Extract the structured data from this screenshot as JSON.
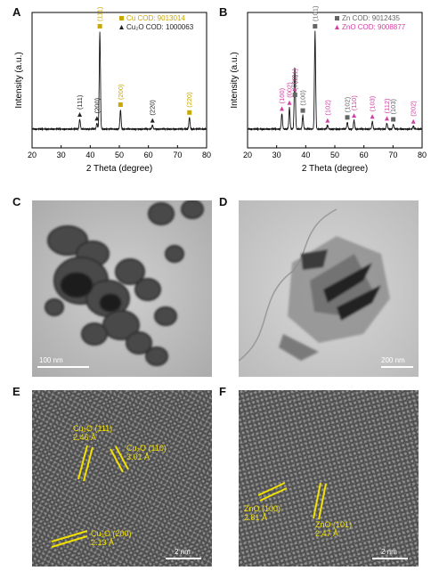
{
  "panels": {
    "a": {
      "letter": "A"
    },
    "b": {
      "letter": "B"
    },
    "c": {
      "letter": "C"
    },
    "d": {
      "letter": "D"
    },
    "e": {
      "letter": "E"
    },
    "f": {
      "letter": "F"
    }
  },
  "colors": {
    "cu": "#c9a800",
    "zno": "#d23fa2",
    "black": "#222222",
    "gray": "#666666",
    "hr_label": "#f2e000"
  },
  "chart_data": [
    {
      "type": "line",
      "xlabel": "2 Theta (degree)",
      "ylabel": "Intensity (a.u.)",
      "xlim": [
        20,
        80
      ],
      "xticks": [
        20,
        30,
        40,
        50,
        60,
        70,
        80
      ],
      "legend": [
        {
          "marker": "square",
          "text": "Cu COD: 9013014",
          "color": "#c9a800"
        },
        {
          "marker": "triangle",
          "text": "Cu₂O COD: 1000063",
          "color": "#222222"
        }
      ],
      "peaks": [
        {
          "x": 36.4,
          "h": 0.1,
          "label": "(111)",
          "phase": "Cu2O"
        },
        {
          "x": 42.3,
          "h": 0.06,
          "label": "(200)",
          "phase": "Cu2O"
        },
        {
          "x": 43.3,
          "h": 1.0,
          "label": "(111)",
          "phase": "Cu"
        },
        {
          "x": 50.4,
          "h": 0.2,
          "label": "(200)",
          "phase": "Cu"
        },
        {
          "x": 61.4,
          "h": 0.04,
          "label": "(220)",
          "phase": "Cu2O"
        },
        {
          "x": 74.1,
          "h": 0.12,
          "label": "(220)",
          "phase": "Cu"
        }
      ]
    },
    {
      "type": "line",
      "xlabel": "2 Theta (degree)",
      "ylabel": "Intensity (a.u.)",
      "xlim": [
        20,
        80
      ],
      "xticks": [
        20,
        30,
        40,
        50,
        60,
        70,
        80
      ],
      "legend": [
        {
          "marker": "square",
          "text": "Zn COD: 9012435",
          "color": "#666666"
        },
        {
          "marker": "triangle",
          "text": "ZnO COD: 9008877",
          "color": "#d23fa2"
        }
      ],
      "peaks": [
        {
          "x": 31.8,
          "h": 0.16,
          "label": "(100)",
          "phase": "ZnO"
        },
        {
          "x": 34.4,
          "h": 0.22,
          "label": "(002)",
          "phase": "ZnO"
        },
        {
          "x": 36.2,
          "h": 0.36,
          "label": "(101)",
          "phase": "ZnO"
        },
        {
          "x": 36.3,
          "h": 0.3,
          "label": "(002)",
          "phase": "Zn"
        },
        {
          "x": 39.0,
          "h": 0.14,
          "label": "(100)",
          "phase": "Zn"
        },
        {
          "x": 43.2,
          "h": 1.0,
          "label": "(101)",
          "phase": "Zn"
        },
        {
          "x": 47.5,
          "h": 0.04,
          "label": "(102)",
          "phase": "ZnO"
        },
        {
          "x": 54.3,
          "h": 0.07,
          "label": "(102)",
          "phase": "Zn"
        },
        {
          "x": 56.6,
          "h": 0.09,
          "label": "(110)",
          "phase": "ZnO"
        },
        {
          "x": 62.9,
          "h": 0.08,
          "label": "(103)",
          "phase": "ZnO"
        },
        {
          "x": 67.9,
          "h": 0.06,
          "label": "(112)",
          "phase": "ZnO"
        },
        {
          "x": 70.1,
          "h": 0.05,
          "label": "(103)",
          "phase": "Zn"
        },
        {
          "x": 77.0,
          "h": 0.03,
          "label": "(202)",
          "phase": "ZnO"
        }
      ]
    }
  ],
  "tem": {
    "c_scale": "100 nm",
    "d_scale": "200 nm",
    "e_scale": "2 nm",
    "f_scale": "2 nm"
  },
  "hrtem": {
    "e1_line1": "Cu₂O (111)",
    "e1_line2": "2.46 Å",
    "e2_line1": "Cu₂O (110)",
    "e2_line2": "3.01 Å",
    "e3_line1": "Cu₂O (200)",
    "e3_line2": "2.13 Å",
    "f1_line1": "ZnO (100)",
    "f1_line2": "2.81 Å",
    "f2_line1": "ZnO (101)",
    "f2_line2": "2.47 Å"
  }
}
